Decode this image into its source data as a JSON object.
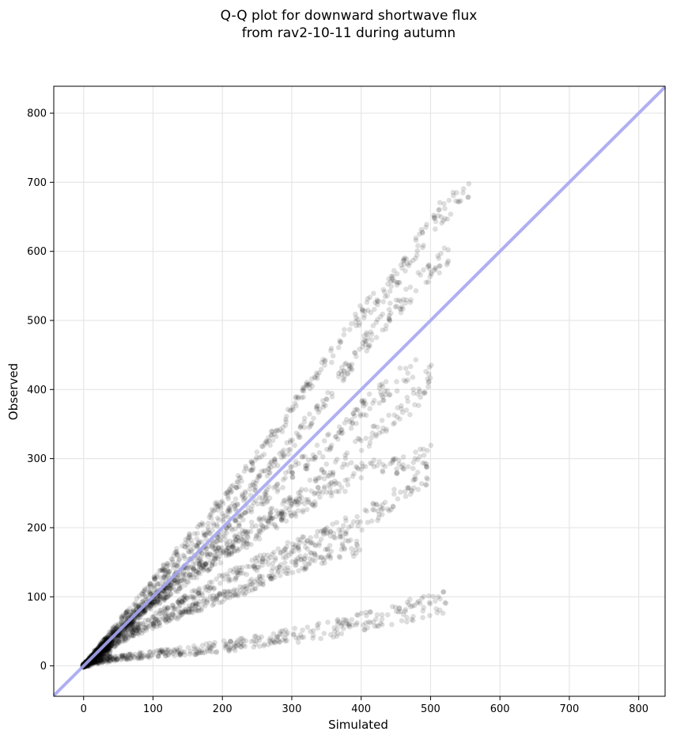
{
  "chart_data": {
    "type": "scatter",
    "title_lines": [
      "Q-Q plot for downward shortwave flux",
      "from rav2-10-11 during autumn"
    ],
    "xlabel": "Simulated",
    "ylabel": "Observed",
    "xlim": [
      -43,
      838
    ],
    "ylim": [
      -44,
      839
    ],
    "x_ticks": [
      0,
      100,
      200,
      300,
      400,
      500,
      600,
      700,
      800
    ],
    "y_ticks": [
      0,
      100,
      200,
      300,
      400,
      500,
      600,
      700,
      800
    ],
    "grid": true,
    "reference_line": {
      "from": [
        -43,
        -43
      ],
      "to": [
        838,
        838
      ],
      "color": "#a6a6f2"
    },
    "point_color": "#000000",
    "series_branches": [
      {
        "x": [
          0,
          50,
          100,
          150,
          200,
          250,
          300,
          350,
          400,
          450,
          500,
          560
        ],
        "y": [
          0,
          62,
          123,
          182,
          238,
          300,
          370,
          440,
          510,
          560,
          640,
          700
        ]
      },
      {
        "x": [
          0,
          50,
          100,
          150,
          200,
          250,
          300,
          350,
          400,
          450,
          500,
          530
        ],
        "y": [
          0,
          55,
          110,
          165,
          215,
          265,
          320,
          390,
          460,
          520,
          570,
          600
        ]
      },
      {
        "x": [
          0,
          50,
          100,
          150,
          200,
          250,
          300,
          350,
          400,
          450,
          480
        ],
        "y": [
          0,
          50,
          100,
          145,
          190,
          235,
          280,
          320,
          370,
          410,
          440
        ]
      },
      {
        "x": [
          0,
          50,
          100,
          150,
          200,
          250,
          300,
          350,
          380,
          420,
          450,
          480,
          500
        ],
        "y": [
          0,
          48,
          95,
          135,
          170,
          205,
          240,
          280,
          300,
          340,
          360,
          390,
          420
        ]
      },
      {
        "x": [
          0,
          50,
          100,
          150,
          200,
          250,
          300,
          350,
          400,
          450,
          500
        ],
        "y": [
          0,
          45,
          88,
          125,
          158,
          190,
          225,
          250,
          280,
          290,
          310
        ]
      },
      {
        "x": [
          0,
          50,
          100,
          150,
          200,
          250,
          300,
          350,
          400,
          430,
          470,
          500
        ],
        "y": [
          0,
          40,
          70,
          98,
          125,
          148,
          170,
          190,
          210,
          230,
          260,
          280
        ]
      },
      {
        "x": [
          0,
          50,
          100,
          150,
          200,
          250,
          300,
          350,
          400
        ],
        "y": [
          0,
          35,
          60,
          80,
          100,
          120,
          145,
          160,
          175
        ]
      },
      {
        "x": [
          0,
          50,
          100,
          150,
          200,
          250,
          300,
          350,
          400,
          450,
          470,
          500,
          525
        ],
        "y": [
          0,
          12,
          17,
          22,
          28,
          35,
          44,
          52,
          62,
          72,
          80,
          88,
          92
        ]
      }
    ]
  }
}
